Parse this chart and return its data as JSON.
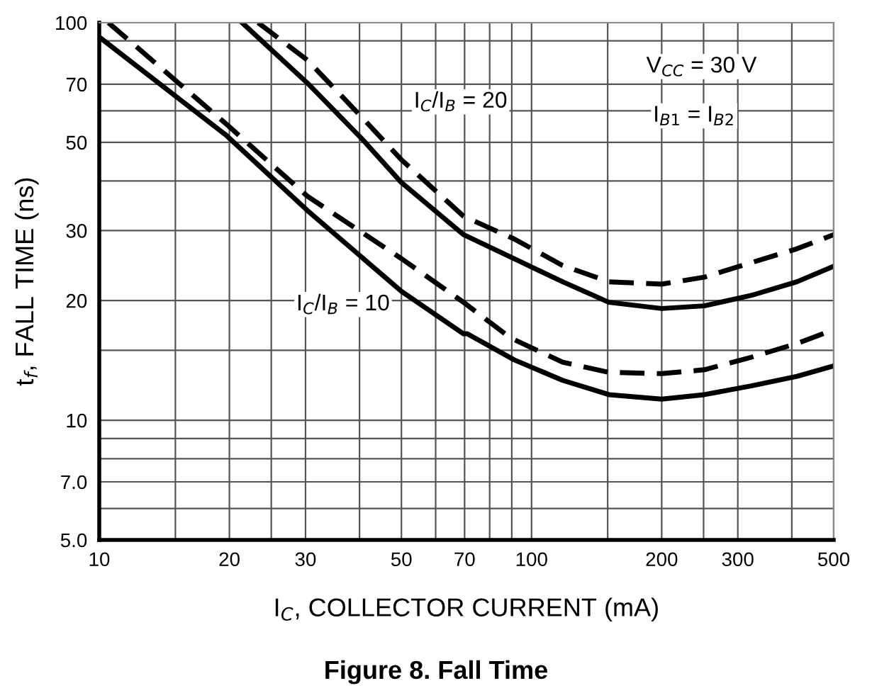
{
  "chart_data": {
    "type": "line",
    "title": "Figure 8. Fall Time",
    "xlabel": "I$_{C}$, COLLECTOR CURRENT (mA)",
    "ylabel": "t$_{f}$, FALL TIME (ns)",
    "log": "xy",
    "grid": true,
    "xlim": [
      10,
      500
    ],
    "ylim": [
      5,
      100
    ],
    "xticks": [
      10,
      {
        "value": 15,
        "label": null
      },
      20,
      {
        "value": 25,
        "label": null
      },
      30,
      {
        "value": 40,
        "label": null
      },
      50,
      {
        "value": 60,
        "label": null
      },
      70,
      {
        "value": 80,
        "label": null
      },
      {
        "value": 90,
        "label": null
      },
      100,
      {
        "value": 150,
        "label": null
      },
      200,
      {
        "value": 250,
        "label": null
      },
      300,
      {
        "value": 400,
        "label": null
      },
      500
    ],
    "yticks": [
      {
        "value": 5,
        "label": "5.0"
      },
      {
        "value": 6,
        "label": null
      },
      {
        "value": 7,
        "label": "7.0"
      },
      {
        "value": 8,
        "label": null
      },
      {
        "value": 9,
        "label": null
      },
      10,
      {
        "value": 15,
        "label": null
      },
      20,
      30,
      {
        "value": 40,
        "label": null
      },
      50,
      {
        "value": 60,
        "label": null
      },
      70,
      {
        "value": 90,
        "label": null
      },
      100
    ],
    "series": [
      {
        "color": "#000000",
        "line_style": "solid",
        "x": [
          10,
          19.7,
          30.3,
          50,
          69.6,
          71,
          91,
          118,
          151,
          200,
          251,
          322,
          411,
          500
        ],
        "values": [
          92,
          52,
          33.7,
          21.1,
          16.5,
          16.5,
          14.2,
          12.6,
          11.6,
          11.3,
          11.6,
          12.2,
          12.9,
          13.7
        ]
      },
      {
        "color": "#000000",
        "line_style": "dashed",
        "x": [
          10.5,
          19.7,
          30.3,
          50,
          69.6,
          89.5,
          118,
          151,
          200,
          251,
          322,
          411,
          500
        ],
        "values": [
          100,
          55.5,
          36.6,
          25.5,
          19.8,
          16.1,
          14.0,
          13.2,
          13.1,
          13.4,
          14.4,
          15.6,
          16.9
        ]
      },
      {
        "color": "#000000",
        "line_style": "solid",
        "x": [
          21.4,
          30.3,
          40.4,
          49.9,
          69.6,
          91,
          118,
          151,
          200,
          251,
          322,
          411,
          500
        ],
        "values": [
          100,
          70.5,
          51.2,
          39.7,
          29.3,
          25.5,
          22.3,
          19.8,
          19.1,
          19.4,
          20.6,
          22.3,
          24.4
        ]
      },
      {
        "color": "#000000",
        "line_style": "dashed",
        "x": [
          23.3,
          30.3,
          40.4,
          49.9,
          69.6,
          91,
          118,
          151,
          200,
          251,
          322,
          411,
          500
        ],
        "values": [
          100,
          80.5,
          58,
          45.3,
          32.6,
          28.6,
          24.5,
          22.3,
          22.0,
          22.9,
          24.9,
          27.0,
          29.3
        ]
      }
    ],
    "annotations": [
      "I$_{C}$/I$_{B}$ = 20",
      "I$_{C}$/I$_{B}$ = 10",
      "V$_{CC}$ = 30 V",
      "I$_{B1}$ = I$_{B2}$"
    ]
  }
}
